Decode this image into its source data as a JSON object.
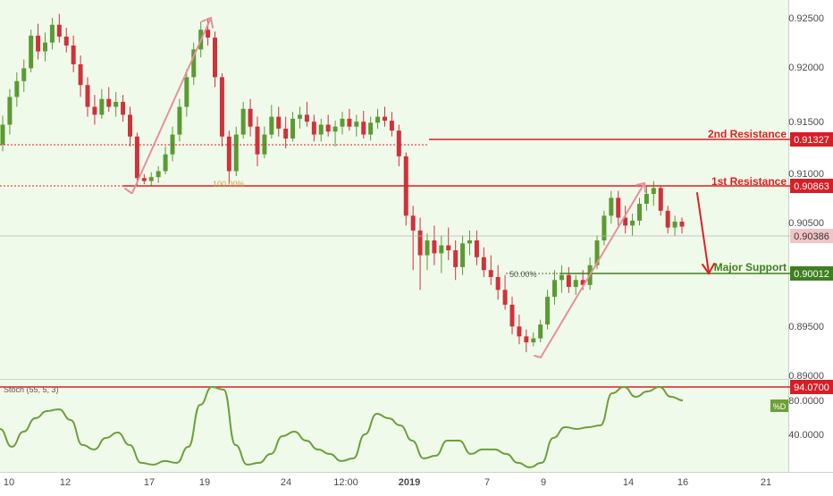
{
  "colors": {
    "background": "#f0faeb",
    "up_candle": "#5a9b32",
    "down_candle": "#d0323b",
    "resistance": "#e02020",
    "support": "#3f7f1f",
    "arrow": "#ea8f9b",
    "stoch_line": "#6ba03a",
    "axis_text": "#4a4a4a"
  },
  "chart_data": [
    {
      "type": "candlestick",
      "title": "",
      "ylim": [
        0.8885,
        0.9268
      ],
      "yticks": [
        "0.92500",
        "0.92000",
        "0.91500",
        "0.91000",
        "0.90500",
        "0.89500",
        "0.89000"
      ],
      "xticks": [
        "10",
        "12",
        "17",
        "19",
        "24",
        "12:00",
        "2019",
        "7",
        "9",
        "14",
        "16",
        "21"
      ],
      "grid": false,
      "candles_ohlc": [
        [
          0.9122,
          0.9151,
          0.9115,
          0.9142
        ],
        [
          0.9142,
          0.9178,
          0.9132,
          0.917
        ],
        [
          0.917,
          0.9195,
          0.916,
          0.9186
        ],
        [
          0.9186,
          0.9208,
          0.9175,
          0.9199
        ],
        [
          0.9199,
          0.9238,
          0.9195,
          0.9232
        ],
        [
          0.9232,
          0.9244,
          0.9208,
          0.9216
        ],
        [
          0.9216,
          0.9235,
          0.9206,
          0.9225
        ],
        [
          0.9225,
          0.925,
          0.9218,
          0.9243
        ],
        [
          0.9243,
          0.9254,
          0.9225,
          0.9231
        ],
        [
          0.9231,
          0.924,
          0.9215,
          0.9222
        ],
        [
          0.9222,
          0.9232,
          0.9195,
          0.9203
        ],
        [
          0.9203,
          0.9212,
          0.917,
          0.9182
        ],
        [
          0.9182,
          0.919,
          0.915,
          0.916
        ],
        [
          0.916,
          0.9172,
          0.9142,
          0.9152
        ],
        [
          0.9152,
          0.9178,
          0.9148,
          0.9168
        ],
        [
          0.9168,
          0.918,
          0.9155,
          0.916
        ],
        [
          0.916,
          0.9175,
          0.915,
          0.9165
        ],
        [
          0.9165,
          0.9172,
          0.9145,
          0.9152
        ],
        [
          0.9152,
          0.916,
          0.912,
          0.913
        ],
        [
          0.913,
          0.9134,
          0.908,
          0.9088
        ],
        [
          0.9088,
          0.9092,
          0.9082,
          0.9085
        ],
        [
          0.9085,
          0.9094,
          0.908,
          0.9089
        ],
        [
          0.9089,
          0.91,
          0.9083,
          0.9095
        ],
        [
          0.9095,
          0.912,
          0.9092,
          0.9112
        ],
        [
          0.9112,
          0.914,
          0.9105,
          0.9132
        ],
        [
          0.9132,
          0.9168,
          0.9125,
          0.916
        ],
        [
          0.916,
          0.9198,
          0.915,
          0.919
        ],
        [
          0.919,
          0.9225,
          0.9182,
          0.9218
        ],
        [
          0.9218,
          0.9246,
          0.921,
          0.9238
        ],
        [
          0.9238,
          0.925,
          0.9222,
          0.923
        ],
        [
          0.923,
          0.9236,
          0.918,
          0.919
        ],
        [
          0.919,
          0.9194,
          0.912,
          0.913
        ],
        [
          0.913,
          0.9136,
          0.9082,
          0.9095
        ],
        [
          0.9095,
          0.914,
          0.909,
          0.9132
        ],
        [
          0.9132,
          0.9165,
          0.9128,
          0.9158
        ],
        [
          0.9158,
          0.9168,
          0.913,
          0.914
        ],
        [
          0.914,
          0.915,
          0.91,
          0.9112
        ],
        [
          0.9112,
          0.914,
          0.9108,
          0.9132
        ],
        [
          0.9132,
          0.9162,
          0.9128,
          0.915
        ],
        [
          0.915,
          0.916,
          0.913,
          0.9138
        ],
        [
          0.9138,
          0.915,
          0.9118,
          0.9128
        ],
        [
          0.9128,
          0.9155,
          0.9125,
          0.9148
        ],
        [
          0.9148,
          0.916,
          0.9138,
          0.9152
        ],
        [
          0.9152,
          0.9165,
          0.914,
          0.9145
        ],
        [
          0.9145,
          0.9152,
          0.9125,
          0.9132
        ],
        [
          0.9132,
          0.9148,
          0.9125,
          0.9142
        ],
        [
          0.9142,
          0.9152,
          0.913,
          0.9135
        ],
        [
          0.9135,
          0.9146,
          0.912,
          0.914
        ],
        [
          0.914,
          0.9155,
          0.9132,
          0.9148
        ],
        [
          0.9148,
          0.9158,
          0.9136,
          0.914
        ],
        [
          0.914,
          0.9152,
          0.913,
          0.9145
        ],
        [
          0.9145,
          0.9156,
          0.9128,
          0.9132
        ],
        [
          0.9132,
          0.915,
          0.9126,
          0.9144
        ],
        [
          0.9144,
          0.9158,
          0.9138,
          0.915
        ],
        [
          0.915,
          0.916,
          0.914,
          0.9146
        ],
        [
          0.9146,
          0.9155,
          0.913,
          0.9136
        ],
        [
          0.9136,
          0.9142,
          0.91,
          0.911
        ],
        [
          0.911,
          0.9114,
          0.904,
          0.905
        ],
        [
          0.905,
          0.906,
          0.8995,
          0.9035
        ],
        [
          0.9035,
          0.9048,
          0.8975,
          0.901
        ],
        [
          0.901,
          0.9032,
          0.8995,
          0.9025
        ],
        [
          0.9025,
          0.904,
          0.9,
          0.9012
        ],
        [
          0.9012,
          0.903,
          0.8992,
          0.902
        ],
        [
          0.902,
          0.9038,
          0.9005,
          0.9015
        ],
        [
          0.9015,
          0.9025,
          0.8985,
          0.8998
        ],
        [
          0.8998,
          0.903,
          0.899,
          0.9022
        ],
        [
          0.9022,
          0.9035,
          0.901,
          0.9025
        ],
        [
          0.9025,
          0.9035,
          0.9,
          0.9008
        ],
        [
          0.9008,
          0.9018,
          0.8988,
          0.8995
        ],
        [
          0.8995,
          0.901,
          0.898,
          0.8988
        ],
        [
          0.8988,
          0.9,
          0.8965,
          0.8975
        ],
        [
          0.8975,
          0.899,
          0.8955,
          0.896
        ],
        [
          0.896,
          0.8968,
          0.893,
          0.8938
        ],
        [
          0.8938,
          0.895,
          0.892,
          0.8928
        ],
        [
          0.8928,
          0.8935,
          0.8912,
          0.8922
        ],
        [
          0.8922,
          0.8932,
          0.8918,
          0.8926
        ],
        [
          0.8926,
          0.8945,
          0.8922,
          0.894
        ],
        [
          0.894,
          0.8975,
          0.8935,
          0.8968
        ],
        [
          0.8968,
          0.8995,
          0.896,
          0.8985
        ],
        [
          0.8985,
          0.9,
          0.8972,
          0.899
        ],
        [
          0.899,
          0.8998,
          0.8972,
          0.8978
        ],
        [
          0.8978,
          0.899,
          0.897,
          0.8985
        ],
        [
          0.8985,
          0.8995,
          0.8975,
          0.898
        ],
        [
          0.898,
          0.9008,
          0.8975,
          0.9
        ],
        [
          0.9,
          0.903,
          0.8996,
          0.9025
        ],
        [
          0.9025,
          0.9055,
          0.902,
          0.905
        ],
        [
          0.905,
          0.9075,
          0.9042,
          0.9068
        ],
        [
          0.9068,
          0.9075,
          0.904,
          0.9048
        ],
        [
          0.9048,
          0.906,
          0.9032,
          0.904
        ],
        [
          0.904,
          0.9052,
          0.903,
          0.9045
        ],
        [
          0.9045,
          0.9068,
          0.904,
          0.9062
        ],
        [
          0.9062,
          0.908,
          0.9055,
          0.9072
        ],
        [
          0.9072,
          0.9085,
          0.906,
          0.9078
        ],
        [
          0.9078,
          0.908,
          0.905,
          0.9055
        ],
        [
          0.9055,
          0.906,
          0.9032,
          0.9038
        ],
        [
          0.9038,
          0.905,
          0.903,
          0.9044
        ],
        [
          0.9044,
          0.9048,
          0.9032,
          0.9039
        ]
      ]
    },
    {
      "type": "line",
      "title": "Stoch (55, 5, 3)",
      "ylim": [
        0,
        100
      ],
      "yticks": [
        "80.0000",
        "40.0000"
      ],
      "legend": "%D",
      "series": [
        {
          "name": "%D",
          "values": [
            48,
            28,
            45,
            60,
            68,
            70,
            58,
            30,
            25,
            38,
            44,
            30,
            10,
            8,
            12,
            10,
            28,
            75,
            95,
            92,
            30,
            8,
            10,
            20,
            40,
            45,
            35,
            25,
            20,
            12,
            15,
            42,
            65,
            60,
            52,
            35,
            15,
            18,
            35,
            35,
            20,
            25,
            25,
            20,
            10,
            5,
            10,
            38,
            50,
            48,
            50,
            52,
            88,
            95,
            84,
            90,
            95,
            84,
            80
          ]
        }
      ]
    }
  ],
  "axis": {
    "price_ticks": [
      "0.92500",
      "0.92000",
      "0.91500",
      "0.91000",
      "0.90500",
      "0.89500",
      "0.89000"
    ],
    "date_ticks": [
      "10",
      "12",
      "17",
      "19",
      "24",
      "12:00",
      "2019",
      "7",
      "9",
      "14",
      "16",
      "21"
    ],
    "stoch_ticks": [
      "80.0000",
      "40.0000"
    ]
  },
  "levels": {
    "second_resistance": {
      "label": "2nd Resistance",
      "value": 0.91327,
      "value_text": "0.91327"
    },
    "first_resistance": {
      "label": "1st Resistance",
      "value": 0.90863,
      "value_text": "0.90863"
    },
    "major_support": {
      "label": "Major Support",
      "value": 0.90012,
      "value_text": "0.90012"
    },
    "current_price": {
      "value": 0.90386,
      "value_text": "0.90386"
    },
    "stoch_level": {
      "value": 94.07,
      "value_text": "94.0700"
    }
  },
  "annotations": {
    "fib_100": "100.00%",
    "fib_50": "50.00%"
  }
}
